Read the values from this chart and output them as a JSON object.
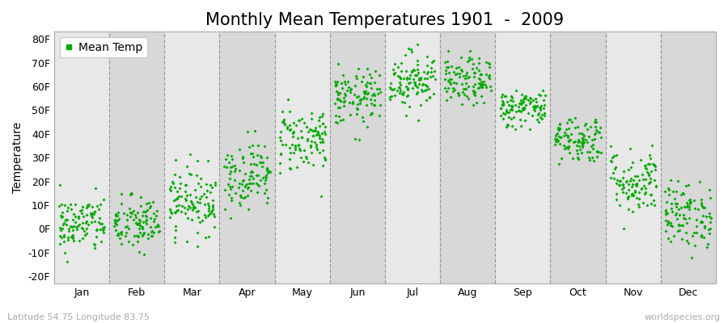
{
  "title": "Monthly Mean Temperatures 1901  -  2009",
  "ylabel": "Temperature",
  "xlabel_labels": [
    "Jan",
    "Feb",
    "Mar",
    "Apr",
    "May",
    "Jun",
    "Jul",
    "Aug",
    "Sep",
    "Oct",
    "Nov",
    "Dec"
  ],
  "ytick_labels": [
    "-20F",
    "-10F",
    "0F",
    "10F",
    "20F",
    "30F",
    "40F",
    "50F",
    "60F",
    "70F",
    "80F"
  ],
  "ytick_values": [
    -20,
    -10,
    0,
    10,
    20,
    30,
    40,
    50,
    60,
    70,
    80
  ],
  "ylim": [
    -23,
    83
  ],
  "legend_label": "Mean Temp",
  "dot_color": "#00aa00",
  "background_color": "#ffffff",
  "plot_bg_even": "#e8e8e8",
  "plot_bg_odd": "#d8d8d8",
  "footer_left": "Latitude 54.75 Longitude 83.75",
  "footer_right": "worldspecies.org",
  "title_fontsize": 15,
  "axis_label_fontsize": 10,
  "tick_fontsize": 9,
  "footer_fontsize": 8,
  "monthly_means": [
    2,
    2,
    12,
    23,
    38,
    55,
    63,
    62,
    51,
    38,
    20,
    6
  ],
  "monthly_stds": [
    6,
    6,
    7,
    7,
    7,
    6,
    6,
    5,
    4,
    5,
    7,
    7
  ],
  "n_years": 109,
  "seed": 42
}
